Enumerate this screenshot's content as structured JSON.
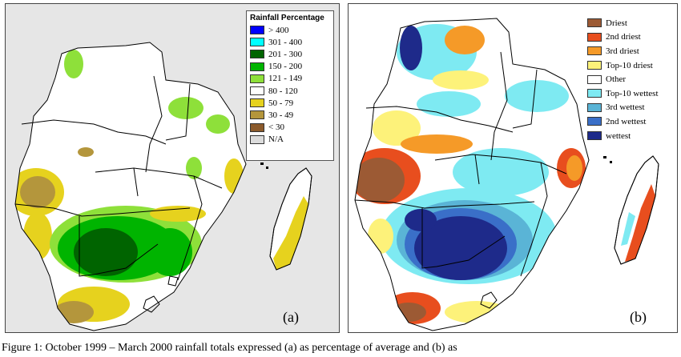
{
  "panels": {
    "a": {
      "label": "(a)",
      "legend_title": "Rainfall Percentage",
      "legend": [
        {
          "label": "> 400",
          "color": "#0000ff"
        },
        {
          "label": "301 - 400",
          "color": "#00ffff"
        },
        {
          "label": "201 - 300",
          "color": "#006400"
        },
        {
          "label": "150 - 200",
          "color": "#00b400"
        },
        {
          "label": "121 - 149",
          "color": "#8ee03a"
        },
        {
          "label": "80 - 120",
          "color": "#ffffff"
        },
        {
          "label": "50 - 79",
          "color": "#e6d21e"
        },
        {
          "label": "30 - 49",
          "color": "#b4963c"
        },
        {
          "label": "< 30",
          "color": "#8b5a2b"
        },
        {
          "label": "N/A",
          "color": "#dcdcdc"
        }
      ]
    },
    "b": {
      "label": "(b)",
      "legend": [
        {
          "label": "Driest",
          "color": "#9c5a34"
        },
        {
          "label": "2nd driest",
          "color": "#e84e1e"
        },
        {
          "label": "3rd driest",
          "color": "#f59a28"
        },
        {
          "label": "Top-10 driest",
          "color": "#fdf27a"
        },
        {
          "label": "Other",
          "color": "#ffffff"
        },
        {
          "label": "Top-10 wettest",
          "color": "#7eeaf2"
        },
        {
          "label": "3rd wettest",
          "color": "#5ab4d6"
        },
        {
          "label": "2nd wettest",
          "color": "#3a6fc8"
        },
        {
          "label": "wettest",
          "color": "#1e2a8a"
        }
      ]
    }
  },
  "caption": "Figure 1: October 1999 – March 2000 rainfall totals expressed (a) as percentage of average and (b) as"
}
